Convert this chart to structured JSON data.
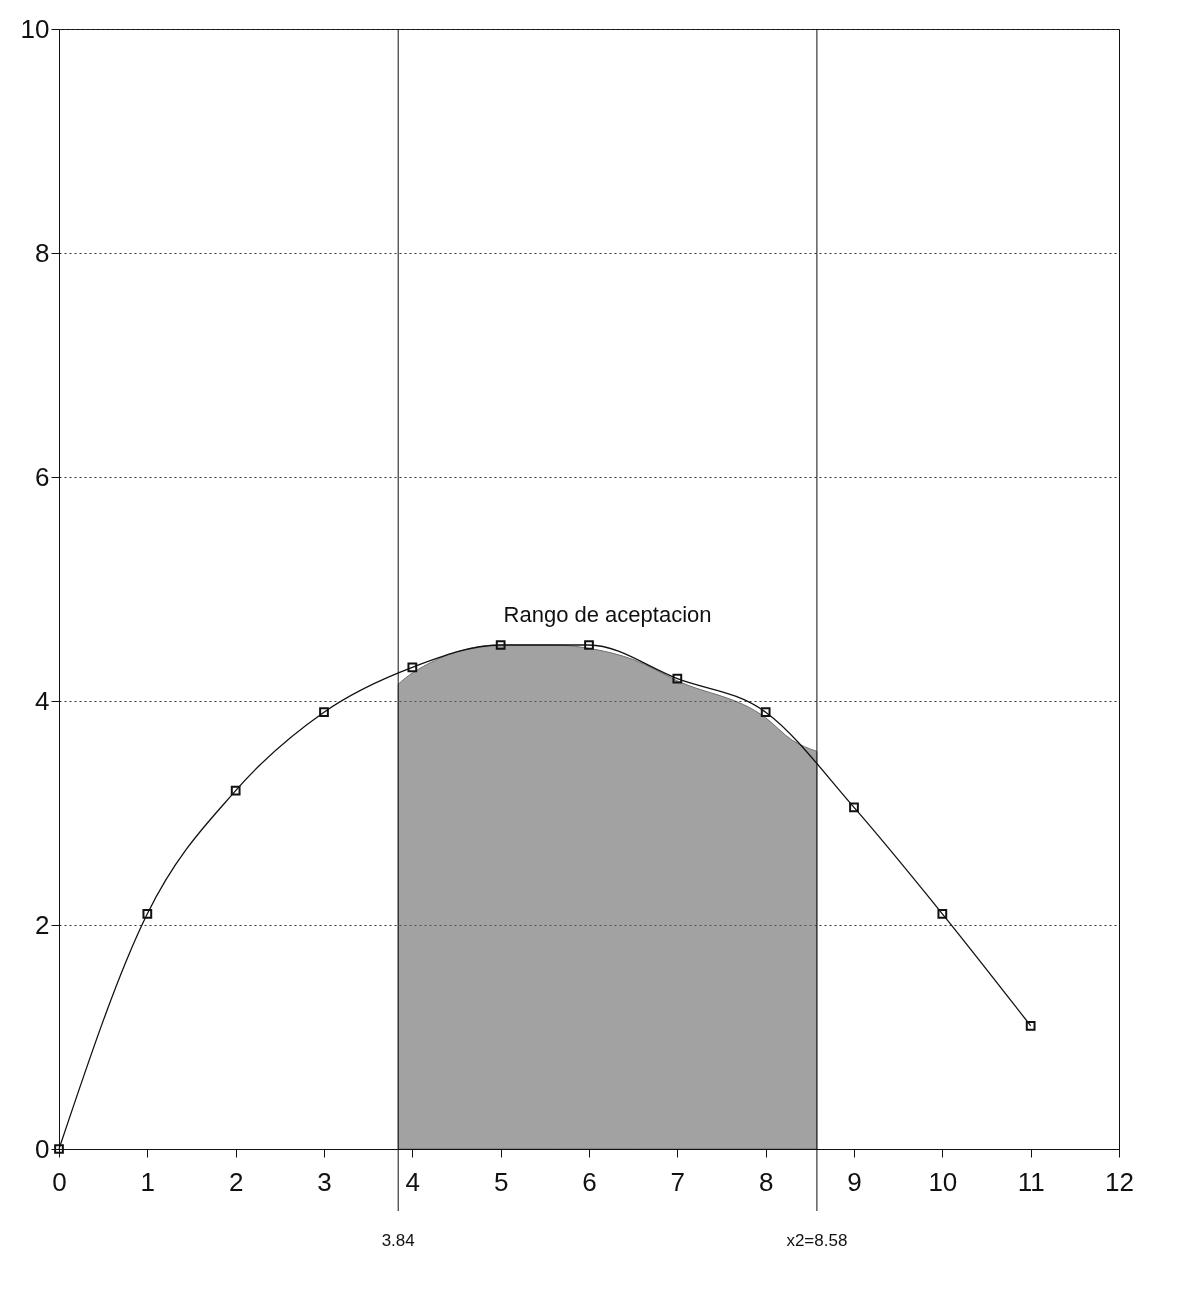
{
  "chart_data": {
    "type": "line",
    "xlim": [
      0,
      12
    ],
    "xticks": [
      0,
      1,
      2,
      3,
      4,
      5,
      6,
      7,
      8,
      9,
      10,
      11,
      12
    ],
    "ylim": [
      0,
      10
    ],
    "yticks": [
      0,
      2,
      4,
      6,
      8,
      10
    ],
    "grid": "y",
    "marker": "square",
    "series": [
      {
        "color": "#111111",
        "x": [
          0,
          1,
          2,
          3,
          4,
          5,
          6,
          7,
          8,
          9,
          10,
          11
        ],
        "values": [
          0,
          2.1,
          3.2,
          3.9,
          4.3,
          4.5,
          4.5,
          4.2,
          3.9,
          3.05,
          2.1,
          1.1
        ]
      },
      {
        "type": "area",
        "marker": "none",
        "color": "#666666",
        "x": [
          3.84,
          4,
          5,
          5.6,
          6,
          6.5,
          7,
          8,
          8.3,
          8.58
        ],
        "values": [
          4.15,
          4.25,
          4.5,
          4.5,
          4.47,
          4.37,
          4.18,
          3.85,
          3.65,
          3.55
        ]
      }
    ],
    "ref_lines": [
      {
        "axis": "x",
        "value": 3.84,
        "label": "3.84"
      },
      {
        "axis": "x",
        "value": 8.58,
        "label": "x2=8.58"
      }
    ],
    "annotations": [
      "Rango de aceptacion"
    ]
  }
}
